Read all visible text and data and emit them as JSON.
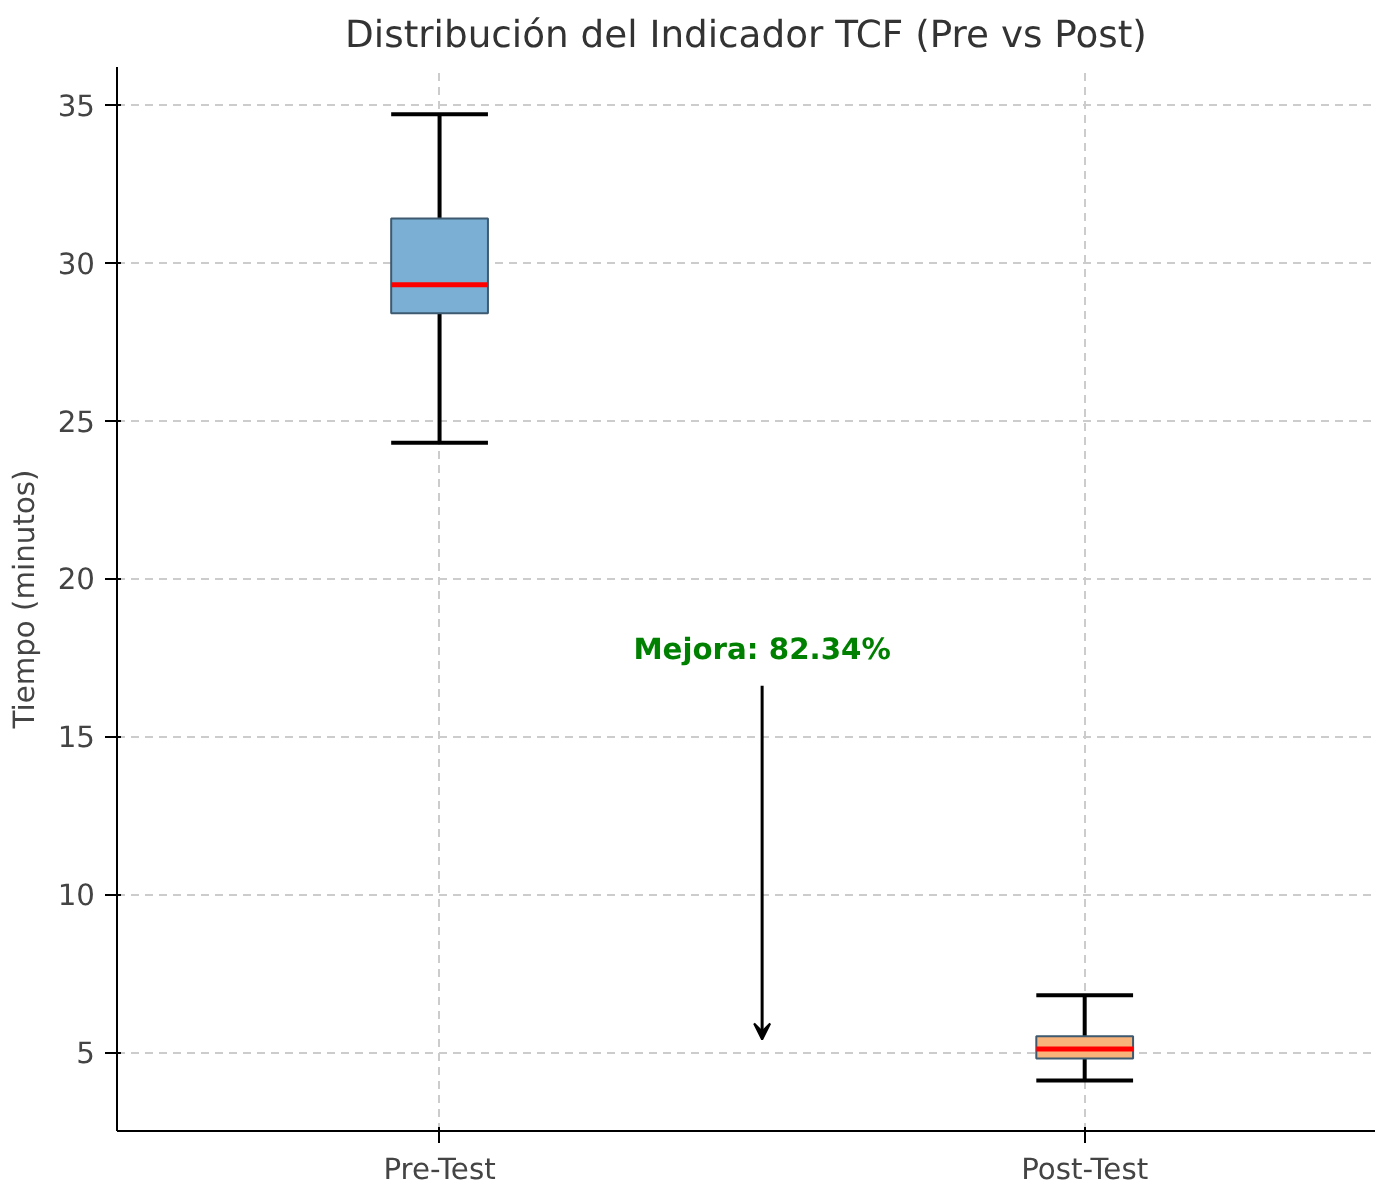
{
  "chart_data": {
    "type": "box",
    "title": "Distribución del Indicador TCF (Pre vs Post)",
    "ylabel": "Tiempo (minutos)",
    "categories": [
      "Pre-Test",
      "Post-Test"
    ],
    "series": [
      {
        "colors": [
          "#7bafd4",
          "#f8b37a"
        ],
        "boxes": [
          {
            "low": 24.3,
            "q1": 28.4,
            "median": 29.3,
            "q3": 31.4,
            "high": 34.7
          },
          {
            "low": 4.1,
            "q1": 4.8,
            "median": 5.1,
            "q3": 5.5,
            "high": 6.8
          }
        ]
      }
    ],
    "ylim": [
      2.5,
      36.2
    ],
    "yticks": [
      5,
      10,
      15,
      20,
      25,
      30,
      35
    ],
    "grid": true,
    "annotations": [
      "Mejora: 82.34%"
    ]
  }
}
